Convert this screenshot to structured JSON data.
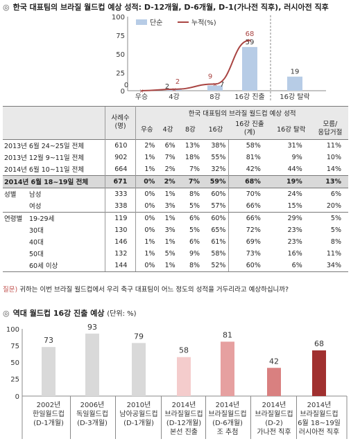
{
  "section1": {
    "bullet": "◎",
    "title": "한국 대표팀의 브라질 월드컵 예상 성적: D-12개월, D-6개월, D-1(가나전 직후), 러시아전 직후"
  },
  "chart_data": [
    {
      "type": "bar",
      "categories": [
        "우승",
        "4강",
        "8강",
        "16강 진출",
        "16강 탈락"
      ],
      "series": [
        {
          "name": "단순",
          "values": [
            0,
            2,
            7,
            59,
            19
          ]
        },
        {
          "name": "누적(%)",
          "values": [
            0,
            2,
            9,
            68,
            null
          ]
        }
      ],
      "ylim": [
        0,
        100
      ],
      "yticks": [
        0,
        25,
        50,
        75,
        100
      ],
      "legend": "top"
    },
    {
      "type": "bar",
      "categories": [
        "2002년 한일월드컵 (D-1개월)",
        "2006년 독일월드컵 (D-3개월)",
        "2010년 남아공월드컵 (D-1개월)",
        "2014년 브라질월드컵 (D-12개월) 본선 진출",
        "2014년 브라질월드컵 (D-6개월) 조 추첨",
        "2014년 브라질월드컵 (D-2) 가나전 직후",
        "2014년 브라질월드컵 6월 18~19일 러시아전 직후"
      ],
      "values": [
        73,
        93,
        79,
        58,
        81,
        42,
        68
      ],
      "ylim": [
        0,
        100
      ],
      "yticks": [
        0,
        25,
        50,
        75,
        100
      ]
    }
  ],
  "chart1_labels": {
    "legend_simple": "단순",
    "legend_cum": "누적(%)",
    "yticks": [
      "100",
      "75",
      "50",
      "25",
      "0"
    ],
    "xlabels": [
      "우승",
      "4강",
      "8강",
      "16강 진출",
      "16강 탈락"
    ],
    "bar_labels": [
      "0",
      "2",
      "7",
      "59",
      "19"
    ],
    "cum_labels": [
      "2",
      "9",
      "68"
    ]
  },
  "table": {
    "header_main": "한국 대표팀의 브라질 월드컵 예상 성적",
    "header_n1": "사례수",
    "header_n2": "(명)",
    "cols": [
      "우승",
      "4강",
      "8강",
      "16강",
      "16강 진출",
      "16강 탈락",
      "모름/"
    ],
    "cols_sub": [
      "",
      "",
      "",
      "",
      "(계)",
      "",
      "응답거절"
    ],
    "rows": [
      {
        "group": "",
        "label": "2013년 6월 24~25일 전체",
        "n": "610",
        "v": [
          "2%",
          "6%",
          "13%",
          "38%",
          "58%",
          "31%",
          "11%"
        ]
      },
      {
        "group": "",
        "label": "2013년 12월 9~11일 전체",
        "n": "902",
        "v": [
          "1%",
          "7%",
          "18%",
          "55%",
          "81%",
          "9%",
          "10%"
        ]
      },
      {
        "group": "",
        "label": "2014년 6월 10~11일 전체",
        "n": "664",
        "v": [
          "1%",
          "2%",
          "7%",
          "32%",
          "42%",
          "44%",
          "14%"
        ]
      },
      {
        "group": "",
        "label": "2014년 6월 18~19일 전체",
        "n": "671",
        "v": [
          "0%",
          "2%",
          "7%",
          "59%",
          "68%",
          "19%",
          "13%"
        ]
      },
      {
        "group": "성별",
        "label": "남성",
        "n": "333",
        "v": [
          "0%",
          "1%",
          "8%",
          "60%",
          "70%",
          "24%",
          "6%"
        ]
      },
      {
        "group": "",
        "label": "여성",
        "n": "338",
        "v": [
          "0%",
          "3%",
          "5%",
          "57%",
          "66%",
          "15%",
          "20%"
        ]
      },
      {
        "group": "연령별",
        "label": "19-29세",
        "n": "119",
        "v": [
          "0%",
          "1%",
          "6%",
          "60%",
          "66%",
          "29%",
          "5%"
        ]
      },
      {
        "group": "",
        "label": "30대",
        "n": "130",
        "v": [
          "0%",
          "3%",
          "5%",
          "65%",
          "72%",
          "23%",
          "5%"
        ]
      },
      {
        "group": "",
        "label": "40대",
        "n": "146",
        "v": [
          "1%",
          "1%",
          "6%",
          "61%",
          "69%",
          "23%",
          "8%"
        ]
      },
      {
        "group": "",
        "label": "50대",
        "n": "132",
        "v": [
          "1%",
          "5%",
          "9%",
          "58%",
          "73%",
          "16%",
          "11%"
        ]
      },
      {
        "group": "",
        "label": "60세 이상",
        "n": "144",
        "v": [
          "0%",
          "1%",
          "8%",
          "52%",
          "60%",
          "6%",
          "34%"
        ]
      }
    ]
  },
  "question": {
    "q": "질문)",
    "text": "귀하는 이번 브라질 월드컵에서 우리 축구 대표팀이 어느 정도의 성적을 거두리라고 예상하십니까?"
  },
  "section2": {
    "bullet": "◎",
    "title": "역대 월드컵 16강 진출 예상",
    "unit": "(단위: %)"
  },
  "chart2_labels": {
    "yticks": [
      "100",
      "75",
      "50",
      "25",
      "0"
    ],
    "bar_labels": [
      "73",
      "93",
      "79",
      "58",
      "81",
      "42",
      "68"
    ],
    "x_line1": [
      "2002년",
      "2006년",
      "2010년",
      "2014년",
      "2014년",
      "2014년",
      "2014년"
    ],
    "x_line2": [
      "한일월드컵",
      "독일월드컵",
      "남아공월드컵",
      "브라질월드컵",
      "브라질월드컵",
      "브라질월드컵",
      "브라질월드컵"
    ],
    "x_line3": [
      "(D-1개월)",
      "(D-3개월)",
      "(D-1개월)",
      "(D-12개월)",
      "(D-6개월)",
      "(D-2)",
      "6월 18~19일"
    ],
    "x_line4": [
      "",
      "",
      "",
      "본선 진출",
      "조 추첨",
      "가나전 직후",
      "러시아전 직후"
    ]
  },
  "colors": {
    "bar_blue": "#b7cce6",
    "line_red": "#a94442",
    "bar_grey": "#d9d9d9",
    "bar_pink_light": "#f4cccc",
    "bar_pink": "#e6a0a0",
    "bar_rose": "#d98080",
    "bar_dark_red": "#a0302f"
  }
}
